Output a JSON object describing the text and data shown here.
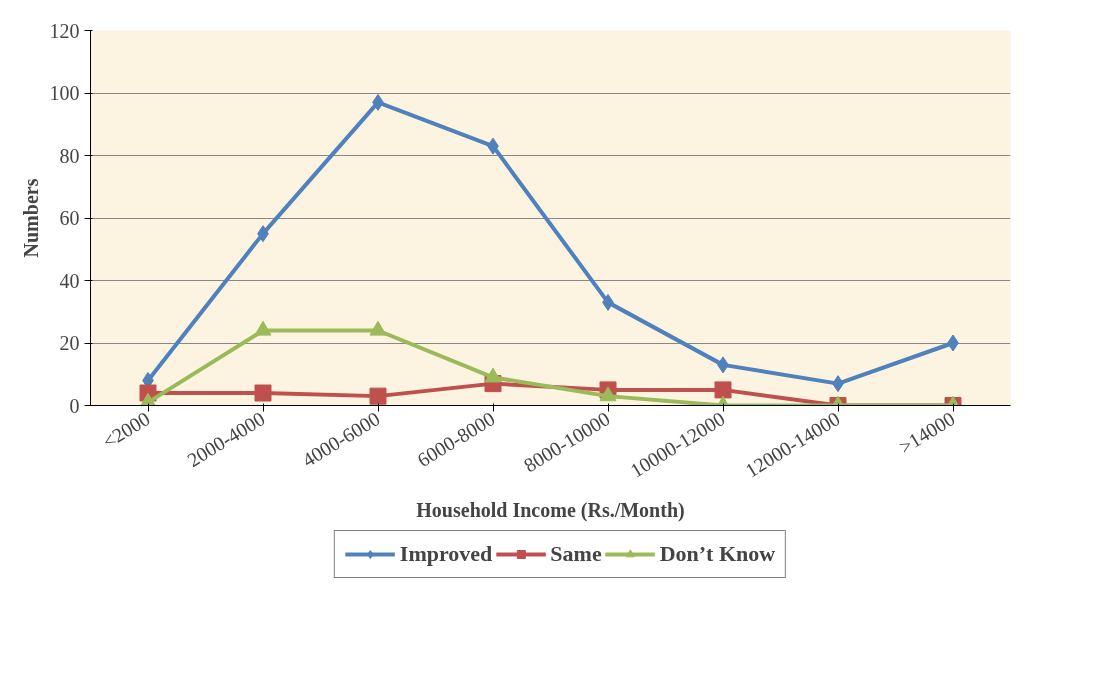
{
  "chart_data": {
    "type": "line",
    "xlabel": "Household Income (Rs./Month)",
    "ylabel": "Numbers",
    "categories": [
      "<2000",
      "2000-4000",
      "4000-6000",
      "6000-8000",
      "8000-10000",
      "10000-12000",
      "12000-14000",
      ">14000"
    ],
    "series": [
      {
        "name": "Improved",
        "color": "#4f81bd",
        "marker": "diamond",
        "values": [
          8,
          55,
          97,
          83,
          33,
          13,
          7,
          20
        ]
      },
      {
        "name": "Same",
        "color": "#c0504d",
        "marker": "square",
        "values": [
          4,
          4,
          3,
          7,
          5,
          5,
          0,
          0
        ]
      },
      {
        "name": "Don’t Know",
        "color": "#9bbb59",
        "marker": "triangle",
        "values": [
          1,
          24,
          24,
          9,
          3,
          0,
          0,
          0
        ]
      }
    ],
    "ylim": [
      0,
      120
    ],
    "yticks": [
      0,
      20,
      40,
      60,
      80,
      100,
      120
    ],
    "grid": "y",
    "legend": "bottom"
  }
}
